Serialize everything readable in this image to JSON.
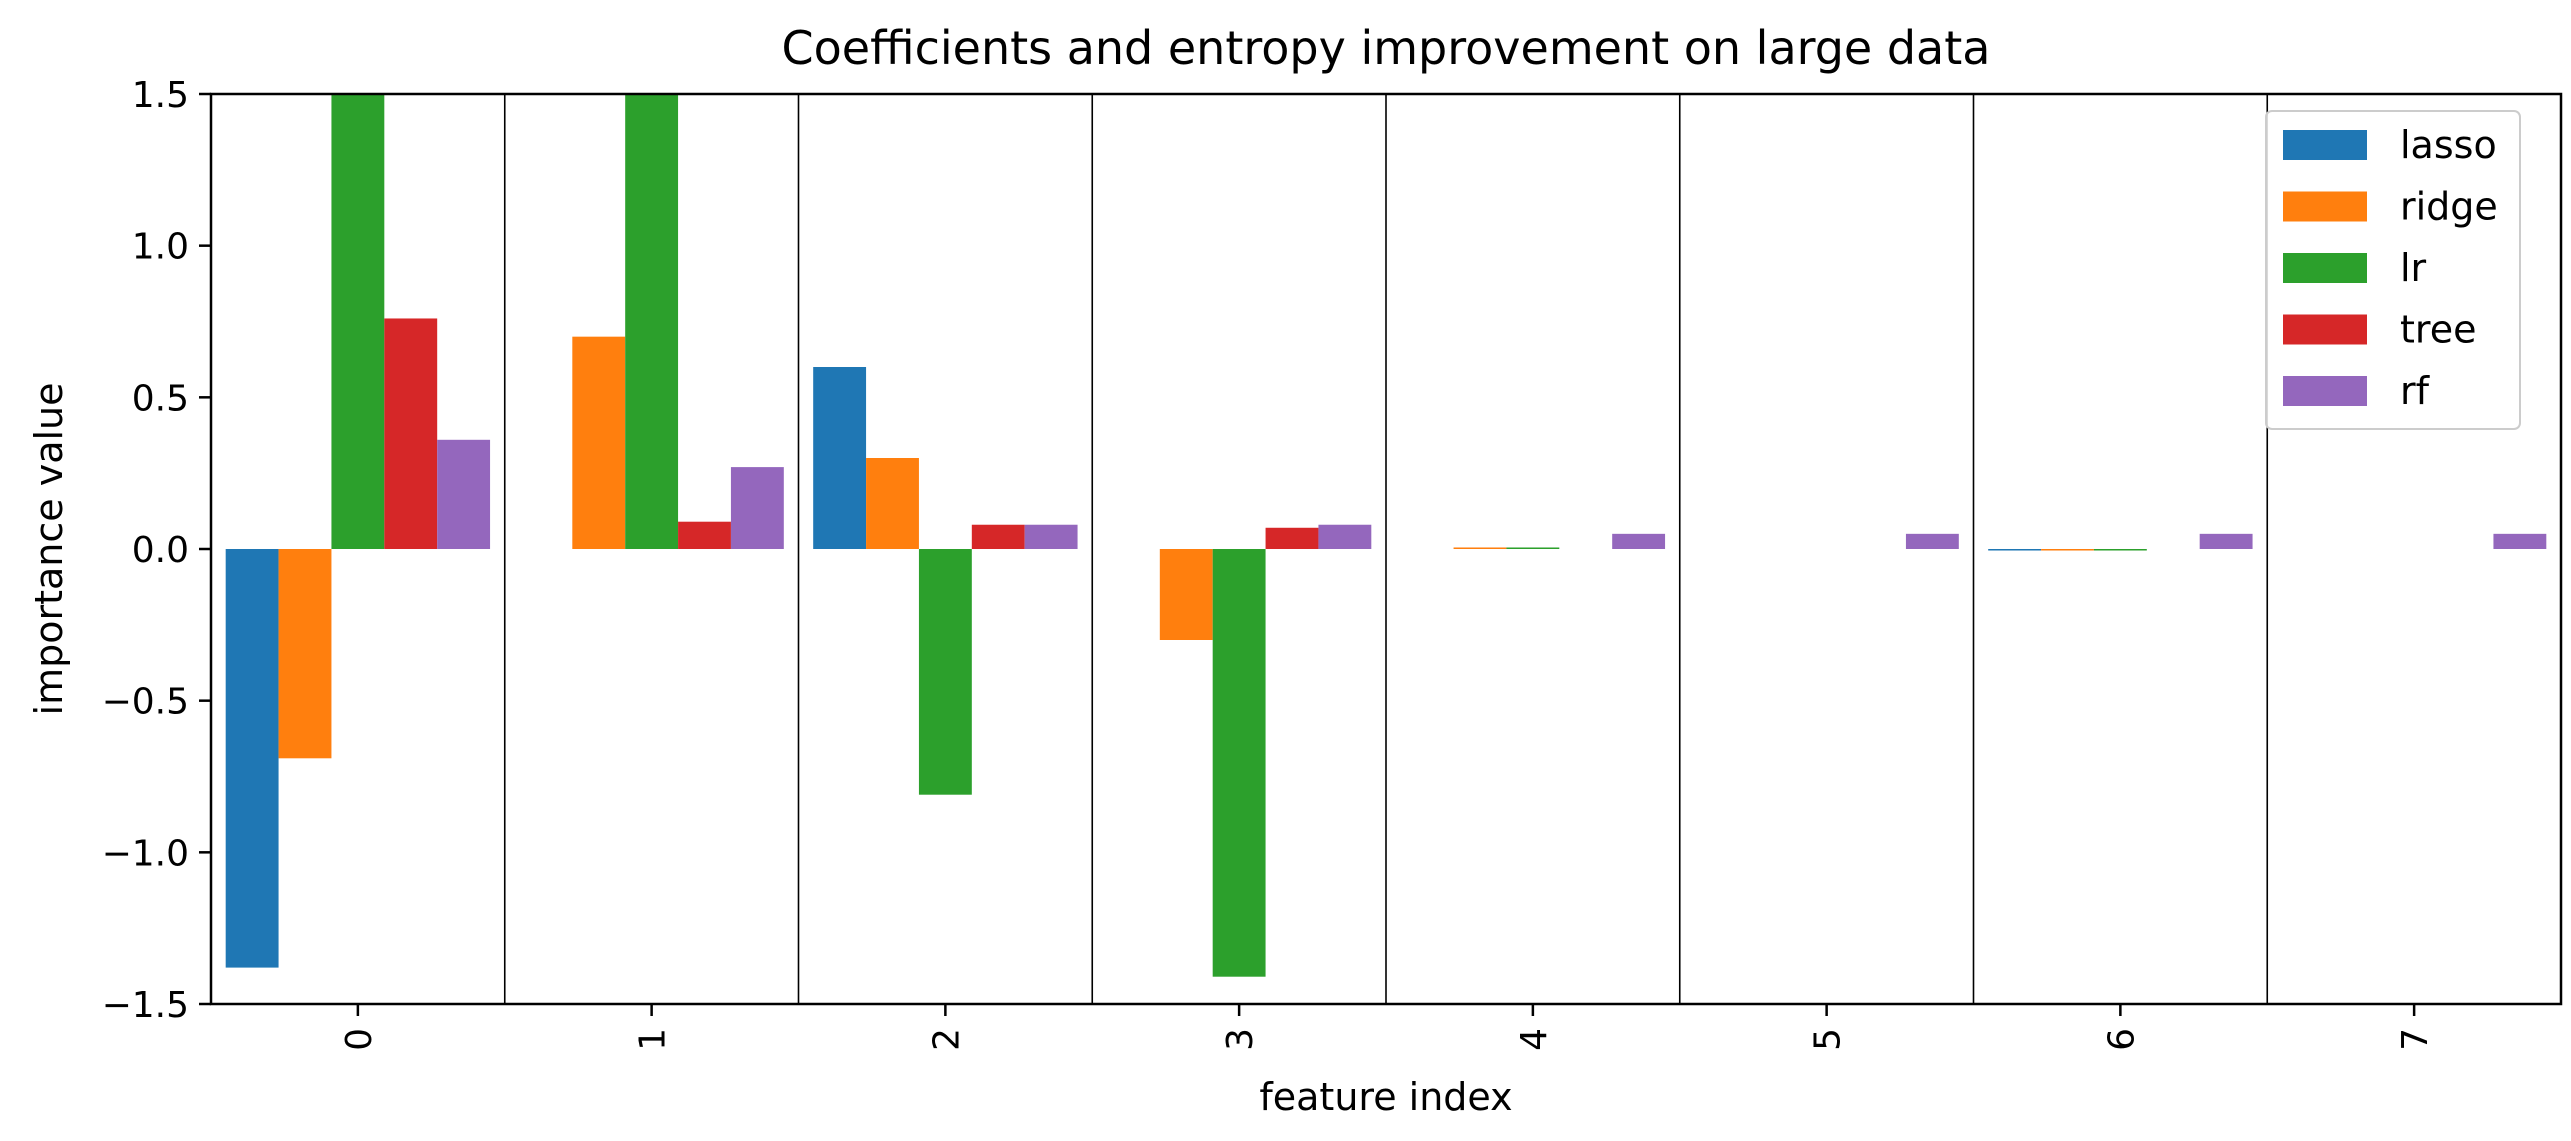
{
  "chart_data": {
    "type": "bar",
    "title": "Coefficients and entropy improvement on large data",
    "xlabel": "feature index",
    "ylabel": "importance value",
    "categories": [
      "0",
      "1",
      "2",
      "3",
      "4",
      "5",
      "6",
      "7"
    ],
    "ylim": [
      -1.5,
      1.5
    ],
    "yticks": [
      "1.5",
      "1.0",
      "0.5",
      "0.0",
      "−0.5",
      "−1.0",
      "−1.5"
    ],
    "ytick_values": [
      1.5,
      1.0,
      0.5,
      0.0,
      -0.5,
      -1.0,
      -1.5
    ],
    "category_separators": true,
    "legend_position": "top-right",
    "series": [
      {
        "name": "lasso",
        "color": "#1f77b4",
        "values": [
          -1.38,
          0.0,
          0.6,
          0.0,
          0.0,
          0.0,
          -0.005,
          0.0
        ]
      },
      {
        "name": "ridge",
        "color": "#ff7f0e",
        "values": [
          -0.69,
          0.7,
          0.3,
          -0.3,
          0.005,
          0.0,
          -0.005,
          0.0
        ]
      },
      {
        "name": "lr",
        "color": "#2ca02c",
        "values": [
          1.5,
          1.5,
          -0.81,
          -1.41,
          0.005,
          0.0,
          -0.005,
          0.0
        ]
      },
      {
        "name": "tree",
        "color": "#d62728",
        "values": [
          0.76,
          0.09,
          0.08,
          0.07,
          0.0,
          0.0,
          0.0,
          0.0
        ]
      },
      {
        "name": "rf",
        "color": "#9467bd",
        "values": [
          0.36,
          0.27,
          0.08,
          0.08,
          0.05,
          0.05,
          0.05,
          0.05
        ]
      }
    ]
  }
}
